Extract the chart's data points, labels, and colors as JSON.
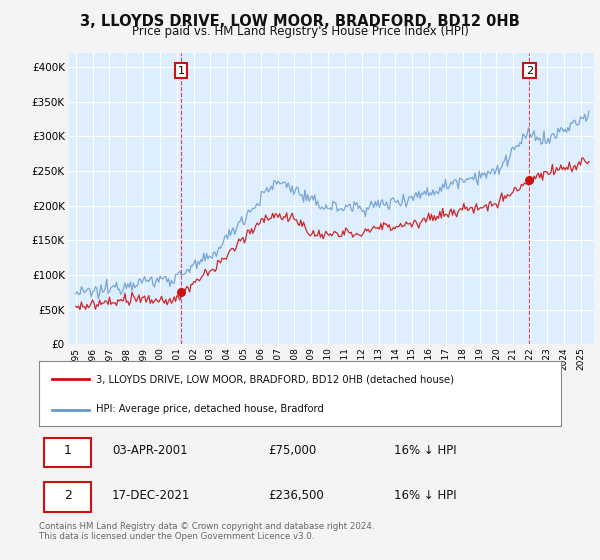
{
  "title": "3, LLOYDS DRIVE, LOW MOOR, BRADFORD, BD12 0HB",
  "subtitle": "Price paid vs. HM Land Registry's House Price Index (HPI)",
  "ylim": [
    0,
    420000
  ],
  "yticks": [
    0,
    50000,
    100000,
    150000,
    200000,
    250000,
    300000,
    350000,
    400000
  ],
  "bg_color": "#ddeeff",
  "fig_color": "#f4f4f4",
  "grid_color": "#ffffff",
  "sale1_date": "03-APR-2001",
  "sale1_price": 75000,
  "sale1_year": 2001.25,
  "sale1_hpi": "16% ↓ HPI",
  "sale2_date": "17-DEC-2021",
  "sale2_price": 236500,
  "sale2_year": 2021.96,
  "sale2_hpi": "16% ↓ HPI",
  "red_line_color": "#cc1111",
  "blue_line_color": "#6699cc",
  "marker_color": "#cc1111",
  "vline_color": "#cc1111",
  "legend1_label": "3, LLOYDS DRIVE, LOW MOOR, BRADFORD, BD12 0HB (detached house)",
  "legend2_label": "HPI: Average price, detached house, Bradford",
  "footnote": "Contains HM Land Registry data © Crown copyright and database right 2024.\nThis data is licensed under the Open Government Licence v3.0.",
  "x_start_year": 1995,
  "x_end_year": 2025
}
